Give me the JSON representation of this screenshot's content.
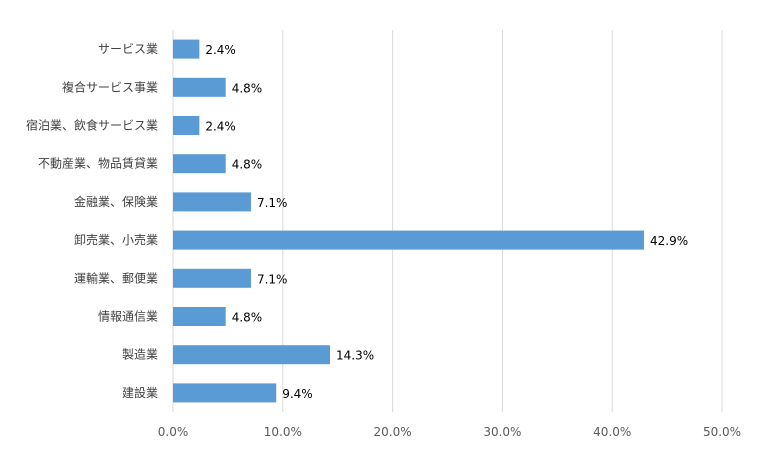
{
  "chart_data": {
    "type": "bar",
    "orientation": "horizontal",
    "categories": [
      "サービス業",
      "複合サービス事業",
      "宿泊業、飲食サービス業",
      "不動産業、物品賃貸業",
      "金融業、保険業",
      "卸売業、小売業",
      "運輸業、郵便業",
      "情報通信業",
      "製造業",
      "建設業"
    ],
    "values": [
      2.4,
      4.8,
      2.4,
      4.8,
      7.1,
      42.9,
      7.1,
      4.8,
      14.3,
      9.4
    ],
    "value_labels": [
      "2.4%",
      "4.8%",
      "2.4%",
      "4.8%",
      "7.1%",
      "42.9%",
      "7.1%",
      "4.8%",
      "14.3%",
      "9.4%"
    ],
    "xlim": [
      0,
      50
    ],
    "xticks": [
      "0.0%",
      "10.0%",
      "20.0%",
      "30.0%",
      "40.0%",
      "50.0%"
    ],
    "title": "",
    "xlabel": "",
    "ylabel": "",
    "grid": "vertical",
    "legend": "none",
    "colors": {
      "bar": "#5b9bd5",
      "grid": "#d9d9d9"
    }
  }
}
